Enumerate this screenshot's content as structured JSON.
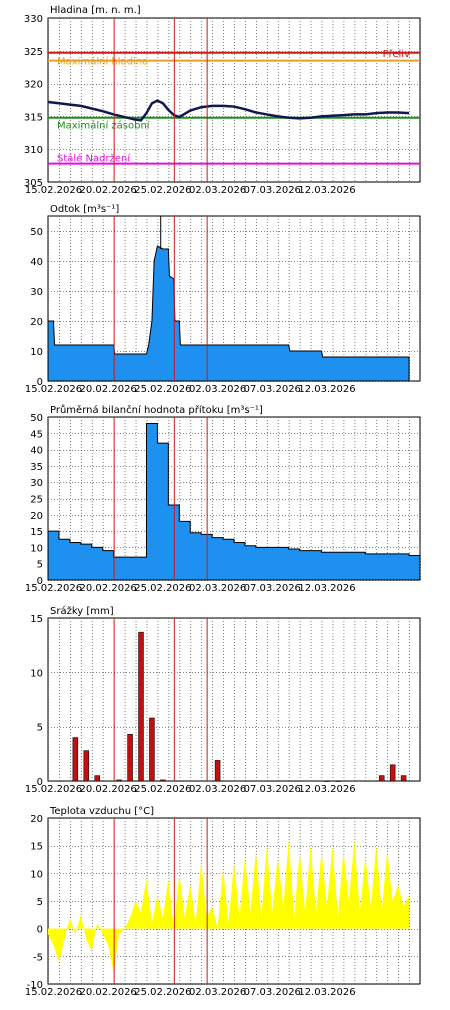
{
  "chart_data": [
    {
      "type": "line",
      "title": "Hladina [m. n. m.]",
      "ylim": [
        305,
        330
      ],
      "yticks": [
        305,
        310,
        315,
        320,
        325,
        330
      ],
      "xlim": [
        0,
        34
      ],
      "xlabels": [
        "15.02.2026",
        "20.02.2026",
        "25.02.2026",
        "02.03.2026",
        "07.03.2026",
        "12.03.2026"
      ],
      "grid": true,
      "reference_lines": [
        {
          "label": "Maximální hladina",
          "value": 323.5,
          "color": "#e8a020"
        },
        {
          "label": "Přeliv",
          "value": 324.7,
          "color": "#d01818"
        },
        {
          "label": "Maximální zásobní",
          "value": 314.8,
          "color": "#1f8f1f"
        },
        {
          "label": "Stálé Nadržení",
          "value": 307.8,
          "color": "#e010e0"
        }
      ],
      "series": [
        {
          "color": "#101850",
          "x": [
            0,
            1,
            2,
            3,
            4,
            5,
            6,
            7,
            8,
            8.5,
            9,
            9.5,
            10,
            10.5,
            11,
            11.5,
            12,
            12.5,
            13,
            14,
            15,
            16,
            17,
            18,
            19,
            20,
            21,
            22,
            23,
            24,
            25,
            26,
            27,
            28,
            29,
            30,
            31,
            32,
            33
          ],
          "y": [
            317.2,
            317.0,
            316.8,
            316.6,
            316.2,
            315.8,
            315.3,
            314.9,
            314.5,
            314.4,
            315.5,
            317.0,
            317.4,
            317.0,
            316.0,
            315.2,
            314.9,
            315.4,
            315.9,
            316.4,
            316.6,
            316.6,
            316.5,
            316.1,
            315.6,
            315.3,
            315.0,
            314.8,
            314.7,
            314.8,
            315.0,
            315.1,
            315.2,
            315.3,
            315.3,
            315.5,
            315.6,
            315.6,
            315.5
          ]
        }
      ]
    },
    {
      "type": "area",
      "title": "Odtok [m³s⁻¹]",
      "ylim": [
        0,
        55
      ],
      "yticks": [
        0,
        10,
        20,
        30,
        40,
        50
      ],
      "xlim": [
        0,
        34
      ],
      "xlabels": [
        "15.02.2026",
        "20.02.2026",
        "25.02.2026",
        "02.03.2026",
        "07.03.2026",
        "12.03.2026"
      ],
      "grid": true,
      "color": "#1e90f0",
      "x": [
        0,
        0.5,
        0.6,
        6,
        6.1,
        9,
        9.2,
        9.5,
        9.7,
        10,
        10.5,
        11,
        11.1,
        11.5,
        11.6,
        12,
        12.1,
        13,
        13.1,
        22,
        22.1,
        25,
        25.1,
        33
      ],
      "y": [
        20,
        20,
        12,
        12,
        9,
        9,
        12,
        20,
        40,
        45,
        44,
        44,
        35,
        34,
        20,
        20,
        12,
        12,
        12,
        12,
        10,
        10,
        8,
        8
      ],
      "spike": {
        "x": 10.3,
        "y": 55
      }
    },
    {
      "type": "area",
      "title": "Průměrná bilanční hodnota přítoku [m³s⁻¹]",
      "ylim": [
        0,
        50
      ],
      "yticks": [
        0,
        5,
        10,
        15,
        20,
        25,
        30,
        35,
        40,
        45,
        50
      ],
      "xlim": [
        0,
        34
      ],
      "xlabels": [
        "15.02.2026",
        "20.02.2026",
        "25.02.2026",
        "02.03.2026",
        "07.03.2026",
        "12.03.2026"
      ],
      "grid": true,
      "color": "#1e90f0",
      "days": [
        0,
        1,
        2,
        3,
        4,
        5,
        6,
        7,
        8,
        9,
        10,
        11,
        12,
        13,
        14,
        15,
        16,
        17,
        18,
        19,
        20,
        21,
        22,
        23,
        24,
        25,
        26,
        27,
        28,
        29,
        30,
        31,
        32,
        33
      ],
      "values": [
        15.0,
        12.5,
        11.5,
        11.0,
        10.0,
        9.0,
        7.0,
        7.0,
        7.0,
        48.0,
        42.0,
        23.0,
        18.0,
        14.5,
        14.0,
        13.0,
        12.5,
        11.5,
        10.5,
        10.0,
        10.0,
        10.0,
        9.5,
        9.0,
        9.0,
        8.5,
        8.5,
        8.5,
        8.5,
        8.0,
        8.0,
        8.0,
        8.0,
        7.5
      ]
    },
    {
      "type": "bar",
      "title": "Srážky [mm]",
      "ylim": [
        0,
        15
      ],
      "yticks": [
        0,
        5,
        10,
        15
      ],
      "xlim": [
        0,
        34
      ],
      "xlabels": [
        "15.02.2026",
        "20.02.2026",
        "25.02.2026",
        "02.03.2026",
        "07.03.2026",
        "12.03.2026"
      ],
      "grid": true,
      "color": "#c01010",
      "days": [
        2.5,
        3.5,
        4.5,
        6.5,
        7.5,
        8.5,
        9.5,
        10.5,
        15.5,
        25.5,
        26.5,
        30.5,
        31.5,
        32.5
      ],
      "values": [
        4.0,
        2.8,
        0.5,
        0.1,
        4.3,
        13.7,
        5.8,
        0.1,
        1.9,
        0.0,
        0.0,
        0.5,
        1.5,
        0.5
      ]
    },
    {
      "type": "area",
      "title": "Teplota vzduchu [°C]",
      "ylim": [
        -10,
        20
      ],
      "yticks": [
        -10,
        -5,
        0,
        5,
        10,
        15,
        20
      ],
      "xlim": [
        0,
        34
      ],
      "xlabels": [
        "15.02.2026",
        "20.02.2026",
        "25.02.2026",
        "02.03.2026",
        "07.03.2026",
        "12.03.2026"
      ],
      "grid": true,
      "color": "#ffff00",
      "x": [
        0,
        0.5,
        1,
        1.5,
        2,
        2.5,
        3,
        3.5,
        4,
        4.5,
        5,
        5.5,
        6,
        6.5,
        7,
        7.5,
        8,
        8.5,
        9,
        9.5,
        10,
        10.5,
        11,
        11.5,
        12,
        12.5,
        13,
        13.5,
        14,
        14.5,
        15,
        15.5,
        16,
        16.5,
        17,
        17.5,
        18,
        18.5,
        19,
        19.5,
        20,
        20.5,
        21,
        21.5,
        22,
        22.5,
        23,
        23.5,
        24,
        24.5,
        25,
        25.5,
        26,
        26.5,
        27,
        27.5,
        28,
        28.5,
        29,
        29.5,
        30,
        30.5,
        31,
        31.5,
        32,
        32.5,
        33
      ],
      "y": [
        -1,
        -3,
        -6,
        -2,
        2,
        -1,
        2.5,
        -2,
        -4,
        1,
        -1,
        -3,
        -8,
        -1,
        0,
        2,
        5,
        3,
        9,
        1,
        6,
        2,
        9,
        0,
        10,
        2,
        8,
        1,
        12,
        2,
        4,
        0,
        11,
        1,
        12,
        2,
        13,
        3,
        14,
        2,
        15,
        3,
        13,
        4,
        16,
        2,
        14,
        3,
        15,
        3,
        14,
        4,
        15,
        2,
        14,
        5,
        16,
        3,
        13,
        4,
        15,
        3,
        14,
        5,
        8,
        4,
        6
      ]
    }
  ]
}
